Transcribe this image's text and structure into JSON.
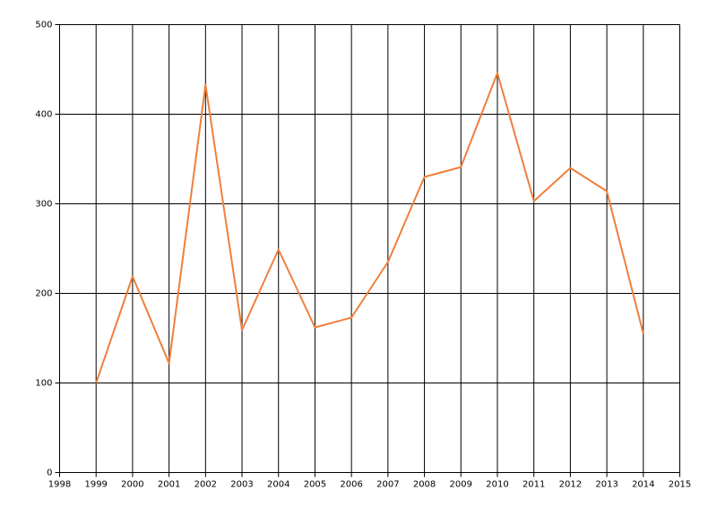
{
  "chart_data": {
    "type": "line",
    "x": [
      1999,
      2000,
      2001,
      2002,
      2003,
      2004,
      2005,
      2006,
      2007,
      2008,
      2009,
      2010,
      2011,
      2012,
      2013,
      2014
    ],
    "values": [
      100,
      219,
      122,
      433,
      159,
      249,
      162,
      173,
      235,
      330,
      341,
      446,
      303,
      340,
      314,
      155
    ],
    "color": "#f07f3c",
    "xlim": [
      1998,
      2015
    ],
    "xticks": [
      1998,
      1999,
      2000,
      2001,
      2002,
      2003,
      2004,
      2005,
      2006,
      2007,
      2008,
      2009,
      2010,
      2011,
      2012,
      2013,
      2014,
      2015
    ],
    "ylim": [
      0,
      500
    ],
    "yticks": [
      0,
      100,
      200,
      300,
      400,
      500
    ],
    "grid": true
  }
}
